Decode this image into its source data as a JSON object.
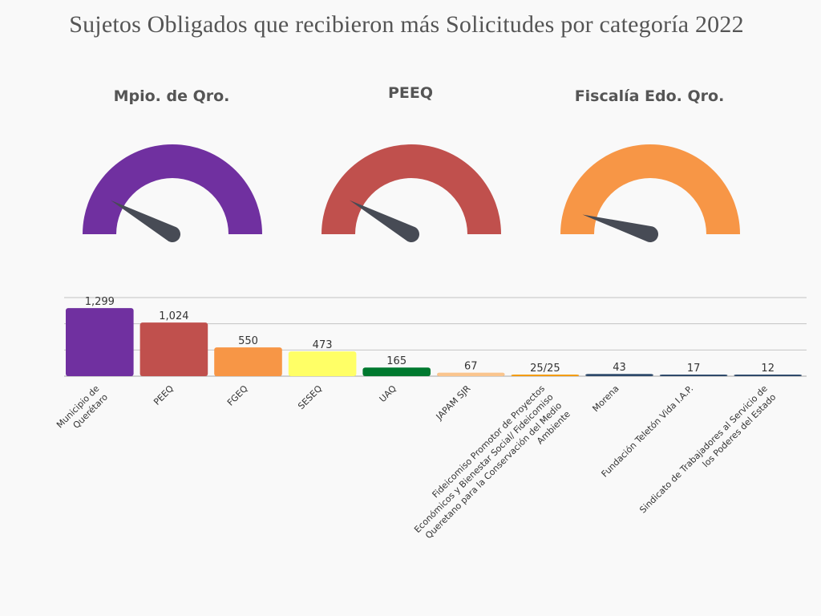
{
  "title": "Sujetos Obligados que recibieron más Solicitudes por categoría 2022",
  "gauges": [
    {
      "label": "Mpio. de Qro.",
      "color": "#7030a0",
      "needle_fraction": 0.16,
      "needle_color": "#474b55"
    },
    {
      "label": "PEEQ",
      "color": "#c0504d",
      "needle_fraction": 0.16,
      "needle_color": "#474b55"
    },
    {
      "label": "Fiscalía Edo. Qro.",
      "color": "#f79646",
      "needle_fraction": 0.09,
      "needle_color": "#474b55"
    }
  ],
  "chart_data": {
    "type": "bar",
    "title": "",
    "xlabel": "",
    "ylabel": "",
    "categories": [
      "Municipio de Querétaro",
      "PEEQ",
      "FGEQ",
      "SESEQ",
      "UAQ",
      "JAPAM SJR",
      "Fideicomiso Promotor de Proyectos Económicos y Bienestar Social/ Fideicomiso Queretano para la Conservación del Medio Ambiente",
      "Morena",
      "Fundación Teletón Vida I.A.P.",
      "Sindicato de Trabajadores al Servicio de los Poderes del Estado"
    ],
    "category_lines": [
      [
        "Municipio de",
        "Querétaro"
      ],
      [
        "PEEQ"
      ],
      [
        "FGEQ"
      ],
      [
        "SESEQ"
      ],
      [
        "UAQ"
      ],
      [
        "JAPAM SJR"
      ],
      [
        "Fideicomiso Promotor de Proyectos",
        "Económicos y Bienestar Social/ Fideicomiso",
        "Queretano  para la Conservación del Medio",
        "Ambiente"
      ],
      [
        "Morena"
      ],
      [
        "Fundación  Teletón Vida I.A.P."
      ],
      [
        "Sindicato de Trabajadores al Servicio de",
        "los Poderes del Estado"
      ]
    ],
    "values": [
      1299,
      1024,
      550,
      473,
      165,
      67,
      25,
      43,
      17,
      12
    ],
    "data_labels": [
      "1,299",
      "1,024",
      "550",
      "473",
      "165",
      "67",
      "25/25",
      "43",
      "17",
      "12"
    ],
    "colors": [
      "#7030a0",
      "#c0504d",
      "#f79646",
      "#ffff66",
      "#00792f",
      "#fac58e",
      "#f39c12",
      "#2e4a6b",
      "#2e4a6b",
      "#2e4a6b"
    ],
    "ylim": [
      0,
      1500
    ],
    "gridlines": [
      0,
      500,
      1000,
      1500
    ],
    "grid": true,
    "legend": "none"
  }
}
